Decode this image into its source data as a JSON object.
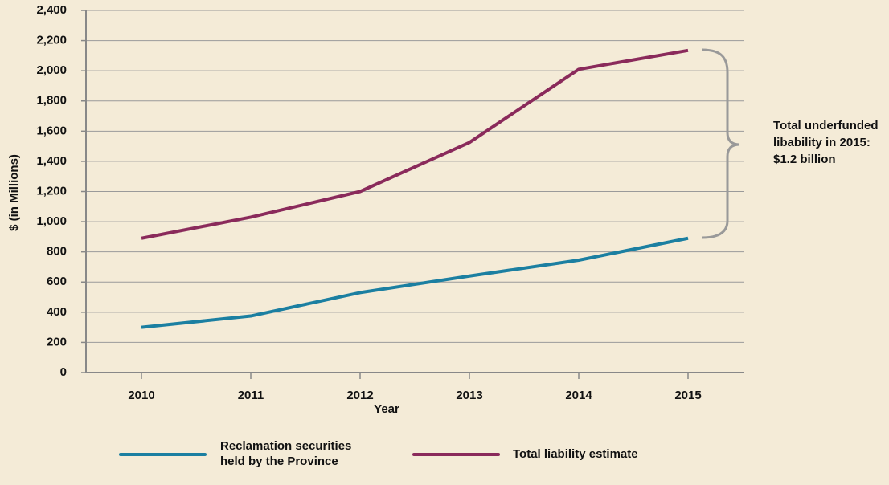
{
  "chart_data": {
    "type": "line",
    "categories": [
      "2010",
      "2011",
      "2012",
      "2013",
      "2014",
      "2015"
    ],
    "series": [
      {
        "name": "Reclamation securities held by the Province",
        "color": "#1b7fa1",
        "values": [
          300,
          375,
          530,
          640,
          745,
          890
        ]
      },
      {
        "name": "Total liability estimate",
        "color": "#8a2a5b",
        "values": [
          890,
          1030,
          1200,
          1525,
          2010,
          2135
        ]
      }
    ],
    "xlabel": "Year",
    "ylabel": "$ (in Millions)",
    "ylim": [
      0,
      2400
    ],
    "yticks": [
      0,
      200,
      400,
      600,
      800,
      {
        "value": 1000,
        "label": "1,000"
      },
      {
        "value": 1200,
        "label": "1,200"
      },
      {
        "value": 1400,
        "label": "1,400"
      },
      {
        "value": 1600,
        "label": "1,600"
      },
      {
        "value": 1800,
        "label": "1,800"
      },
      {
        "value": 2000,
        "label": "2,000"
      },
      {
        "value": 2200,
        "label": "2,200"
      },
      {
        "value": 2400,
        "label": "2,400"
      }
    ],
    "grid": true,
    "legend": "bottom",
    "annotation": [
      "Total underfunded",
      "libability in 2015:",
      "$1.2 billion"
    ]
  }
}
